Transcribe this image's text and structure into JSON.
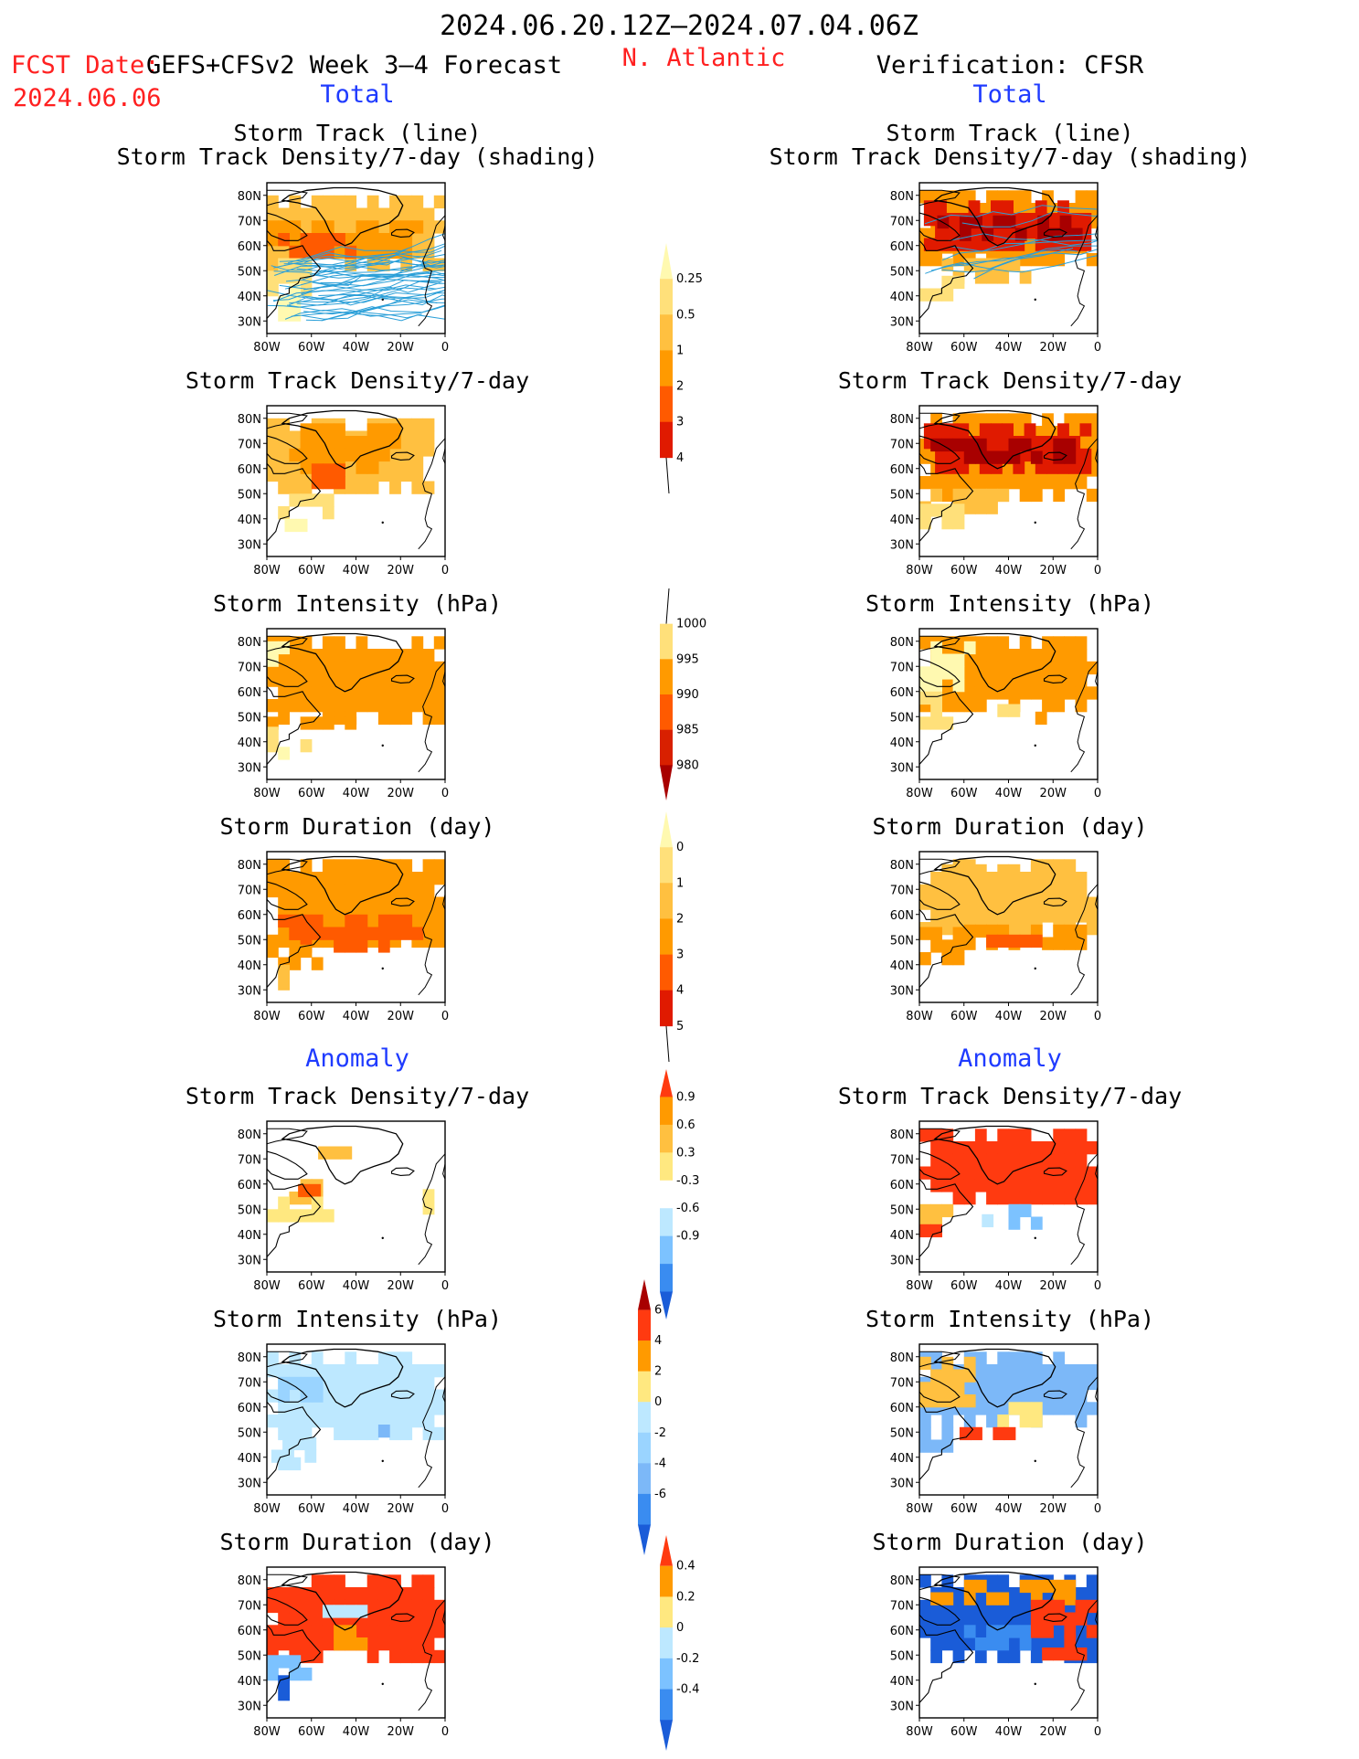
{
  "header": {
    "date_range": "2024.06.20.12Z–2024.07.04.06Z",
    "fcst_date_label": "FCST Date:",
    "fcst_date_value": "2024.06.06",
    "forecast_name": "GEFS+CFSv2 Week 3–4 Forecast",
    "region": "N. Atlantic",
    "verification": "Verification: CFSR"
  },
  "sections": {
    "total_label": "Total",
    "anomaly_label": "Anomaly"
  },
  "panel_titles": {
    "track_line": "Storm Track (line)",
    "track_shading": "Storm Track Density/7-day (shading)",
    "density": "Storm Track Density/7-day",
    "intensity": "Storm Intensity (hPa)",
    "duration": "Storm Duration (day)"
  },
  "axes": {
    "lat_ticks": [
      "80N",
      "70N",
      "60N",
      "50N",
      "40N",
      "30N"
    ],
    "lon_ticks": [
      "80W",
      "60W",
      "40W",
      "20W",
      "0"
    ]
  },
  "colors": {
    "frame": "#000000",
    "track_line": "#2a9fd8",
    "coast": "#000000"
  },
  "chart_data": [
    {
      "type": "heatmap",
      "name": "colorbar-density-total",
      "levels": [
        "0.25",
        "0.5",
        "1",
        "2",
        "3",
        "4"
      ],
      "colors": [
        "#fff9b0",
        "#ffe07a",
        "#ffc040",
        "#ff9a00",
        "#ff5a00",
        "#e01a00",
        "#a80000"
      ]
    },
    {
      "type": "heatmap",
      "name": "colorbar-intensity-total",
      "levels": [
        "1000",
        "995",
        "990",
        "985",
        "980"
      ],
      "colors": [
        "#fff9b0",
        "#ffe07a",
        "#ff9a00",
        "#ff5a00",
        "#d82000",
        "#a80000"
      ]
    },
    {
      "type": "heatmap",
      "name": "colorbar-duration-total",
      "levels": [
        "0",
        "1",
        "2",
        "3",
        "4",
        "5"
      ],
      "colors": [
        "#fff9b0",
        "#ffe07a",
        "#ffc040",
        "#ff9a00",
        "#ff5a00",
        "#e01a00",
        "#a80000"
      ]
    },
    {
      "type": "heatmap",
      "name": "colorbar-density-anomaly",
      "levels": [
        "0.9",
        "0.6",
        "0.3",
        "-0.3",
        "-0.6",
        "-0.9"
      ],
      "colors": [
        "#ff3a10",
        "#ff9a00",
        "#ffc040",
        "#ffe880",
        "#ffffff",
        "#bde8ff",
        "#7cc2ff",
        "#3a8cf0",
        "#1a5cd8"
      ]
    },
    {
      "type": "heatmap",
      "name": "colorbar-intensity-anomaly",
      "levels": [
        "6",
        "4",
        "2",
        "0",
        "-2",
        "-4",
        "-6"
      ],
      "colors": [
        "#a80000",
        "#ff3a10",
        "#ff9a00",
        "#ffe880",
        "#bde8ff",
        "#9ad4ff",
        "#7cb8f8",
        "#3a8cf0",
        "#1a5cd8"
      ]
    },
    {
      "type": "heatmap",
      "name": "colorbar-duration-anomaly",
      "levels": [
        "0.4",
        "0.2",
        "0",
        "-0.2",
        "-0.4"
      ],
      "colors": [
        "#ff3a10",
        "#ff9a00",
        "#ffe880",
        "#bde8ff",
        "#7cc2ff",
        "#3a8cf0",
        "#1a5cd8"
      ]
    }
  ]
}
